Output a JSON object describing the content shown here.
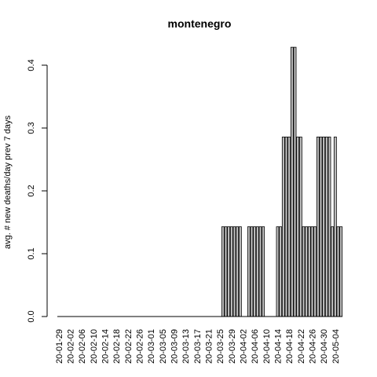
{
  "chart_data": {
    "type": "bar",
    "title": "montenegro",
    "xlabel": "",
    "ylabel": "avg. # new deaths/day prev  7  days",
    "ylim": [
      0,
      0.43
    ],
    "yticks": [
      0.0,
      0.1,
      0.2,
      0.3,
      0.4
    ],
    "ytick_labels": [
      "0.0",
      "0.1",
      "0.2",
      "0.3",
      "0.4"
    ],
    "grid": false,
    "bar_color": "#bebebe",
    "x_tick_labels": [
      "20-01-29",
      "20-02-02",
      "20-02-06",
      "20-02-10",
      "20-02-14",
      "20-02-18",
      "20-02-22",
      "20-02-26",
      "20-03-01",
      "20-03-05",
      "20-03-09",
      "20-03-13",
      "20-03-17",
      "20-03-21",
      "20-03-25",
      "20-03-29",
      "20-04-02",
      "20-04-06",
      "20-04-10",
      "20-04-14",
      "20-04-18",
      "20-04-22",
      "20-04-26",
      "20-04-30",
      "20-05-04"
    ],
    "start_date": "2020-01-29",
    "values": [
      0,
      0,
      0,
      0,
      0,
      0,
      0,
      0,
      0,
      0,
      0,
      0,
      0,
      0,
      0,
      0,
      0,
      0,
      0,
      0,
      0,
      0,
      0,
      0,
      0,
      0,
      0,
      0,
      0,
      0,
      0,
      0,
      0,
      0,
      0,
      0,
      0,
      0,
      0,
      0,
      0,
      0,
      0,
      0,
      0,
      0,
      0,
      0,
      0,
      0,
      0,
      0,
      0,
      0,
      0,
      0,
      0,
      0.142857,
      0.142857,
      0.142857,
      0.142857,
      0.142857,
      0.142857,
      0.142857,
      0,
      0,
      0.142857,
      0.142857,
      0.142857,
      0.142857,
      0.142857,
      0.142857,
      0,
      0,
      0,
      0,
      0.142857,
      0.142857,
      0.285714,
      0.285714,
      0.285714,
      0.428571,
      0.428571,
      0.285714,
      0.285714,
      0.142857,
      0.142857,
      0.142857,
      0.142857,
      0.142857,
      0.285714,
      0.285714,
      0.285714,
      0.285714,
      0.285714,
      0.142857,
      0.285714,
      0.142857,
      0.142857
    ]
  }
}
